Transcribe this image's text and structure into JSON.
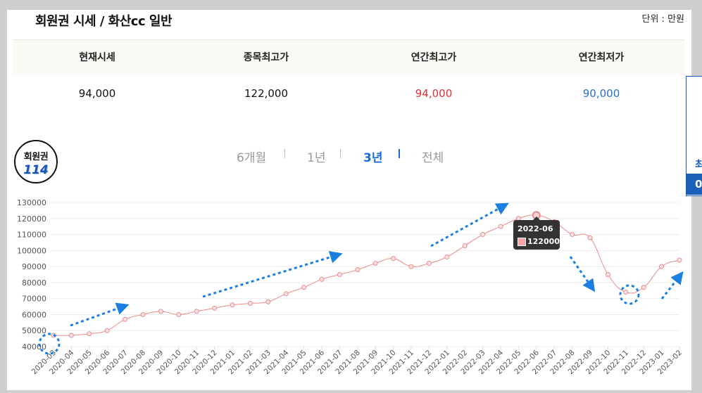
{
  "header": {
    "title": "회원권 시세 / 화산cc 일반",
    "unit": "단위 : 만원"
  },
  "summary": {
    "columns": [
      {
        "label": "현재시세",
        "value": "94,000"
      },
      {
        "label": "종목최고가",
        "value": "122,000"
      },
      {
        "label": "연간최고가",
        "value": "94,000"
      },
      {
        "label": "연간최저가",
        "value": "90,000"
      }
    ]
  },
  "logo": {
    "top": "회원권",
    "number": "114"
  },
  "tabs": [
    {
      "label": "6개월",
      "active": false
    },
    {
      "label": "1년",
      "active": false
    },
    {
      "label": "3년",
      "active": true
    },
    {
      "label": "전체",
      "active": false
    }
  ],
  "right_widget": {
    "text": "최",
    "bar": "0"
  },
  "colors": {
    "line": "#e88a8a",
    "marker": "#f4a5a5",
    "accent": "#1a6cd1",
    "up": "#e0303a",
    "down": "#2a6fc2",
    "annotation": "#1a7fe0"
  },
  "tooltip": {
    "date": "2022-06",
    "value": "122000"
  },
  "chart_data": {
    "type": "line",
    "x": [
      "2020-03",
      "2020-04",
      "2020-05",
      "2020-06",
      "2020-07",
      "2020-08",
      "2020-09",
      "2020-10",
      "2020-11",
      "2020-12",
      "2021-01",
      "2021-02",
      "2021-03",
      "2021-04",
      "2021-05",
      "2021-06",
      "2021-07",
      "2021-08",
      "2021-09",
      "2021-10",
      "2021-11",
      "2021-12",
      "2022-01",
      "2022-02",
      "2022-03",
      "2022-04",
      "2022-05",
      "2022-06",
      "2022-07",
      "2022-08",
      "2022-09",
      "2022-10",
      "2022-11",
      "2022-12",
      "2023-01",
      "2023-02"
    ],
    "series": [
      {
        "values": [
          47000,
          47000,
          48000,
          50000,
          57000,
          60000,
          62000,
          60000,
          62000,
          64000,
          66000,
          67000,
          68000,
          73000,
          77000,
          82000,
          85000,
          88000,
          92000,
          95000,
          90000,
          92000,
          96000,
          103000,
          110000,
          115000,
          120000,
          122000,
          118000,
          110000,
          108000,
          85000,
          74000,
          77000,
          90000,
          94000
        ]
      }
    ],
    "yticks": [
      40000,
      50000,
      60000,
      70000,
      80000,
      90000,
      100000,
      110000,
      120000,
      130000
    ],
    "ylim": [
      40000,
      130000
    ],
    "grid": true,
    "highlight_index": 27
  }
}
